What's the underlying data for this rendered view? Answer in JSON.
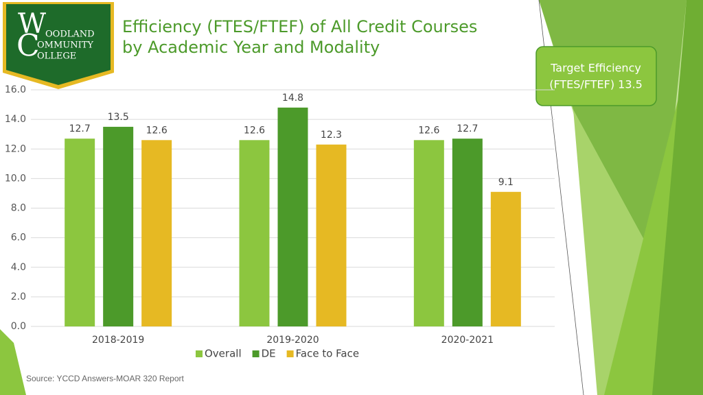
{
  "logo": {
    "letters": [
      "W",
      "C"
    ],
    "lines": [
      "OODLAND",
      "OMMUNITY",
      "OLLEGE"
    ]
  },
  "callout": [
    "Target Efficiency",
    "(FTES/FTEF) 13.5"
  ],
  "source": "Source: YCCD Answers-MOAR 320 Report",
  "chart_data": {
    "type": "bar",
    "title": [
      "Efficiency (FTES/FTEF) of All Credit Courses",
      "by Academic Year and Modality"
    ],
    "categories": [
      "2018-2019",
      "2019-2020",
      "2020-2021"
    ],
    "series": [
      {
        "name": "Overall",
        "color": "#8cc63f",
        "values": [
          12.7,
          12.6,
          12.6
        ]
      },
      {
        "name": "DE",
        "color": "#4c9a2a",
        "values": [
          13.5,
          14.8,
          12.7
        ]
      },
      {
        "name": "Face to Face",
        "color": "#e6b923",
        "values": [
          12.6,
          12.3,
          9.1
        ]
      }
    ],
    "ylim": [
      0,
      16
    ],
    "yticks": [
      {
        "value": 0,
        "label": "0.0"
      },
      {
        "value": 2,
        "label": "2.0"
      },
      {
        "value": 4,
        "label": "4.0"
      },
      {
        "value": 6,
        "label": "6.0"
      },
      {
        "value": 8,
        "label": "8.0"
      },
      {
        "value": 10,
        "label": "10.0"
      },
      {
        "value": 12,
        "label": "12.0"
      },
      {
        "value": 14,
        "label": "14.0"
      },
      {
        "value": 16,
        "label": "16.0"
      }
    ],
    "grid": true,
    "legend": "bottom"
  }
}
